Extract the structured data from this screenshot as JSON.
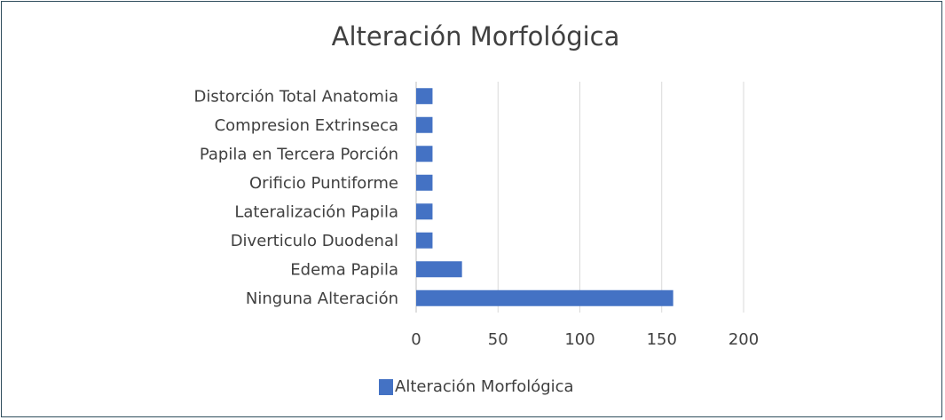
{
  "chart_data": {
    "type": "bar",
    "orientation": "horizontal",
    "title": "Alteración Morfológica",
    "categories": [
      "Distorción Total Anatomia",
      "Compresion Extrinseca",
      "Papila en Tercera Porción",
      "Orificio Puntiforme",
      "Lateralización Papila",
      "Diverticulo Duodenal",
      "Edema Papila",
      "Ninguna Alteración"
    ],
    "series": [
      {
        "name": "Alteración Morfológica",
        "color": "#4472c4",
        "values": [
          10,
          10,
          10,
          10,
          10,
          10,
          28,
          157
        ]
      }
    ],
    "xlim": [
      0,
      200
    ],
    "xticks": [
      0,
      50,
      100,
      150,
      200
    ],
    "grid": "vertical",
    "legend": "bottom-left",
    "xlabel": "",
    "ylabel": ""
  }
}
